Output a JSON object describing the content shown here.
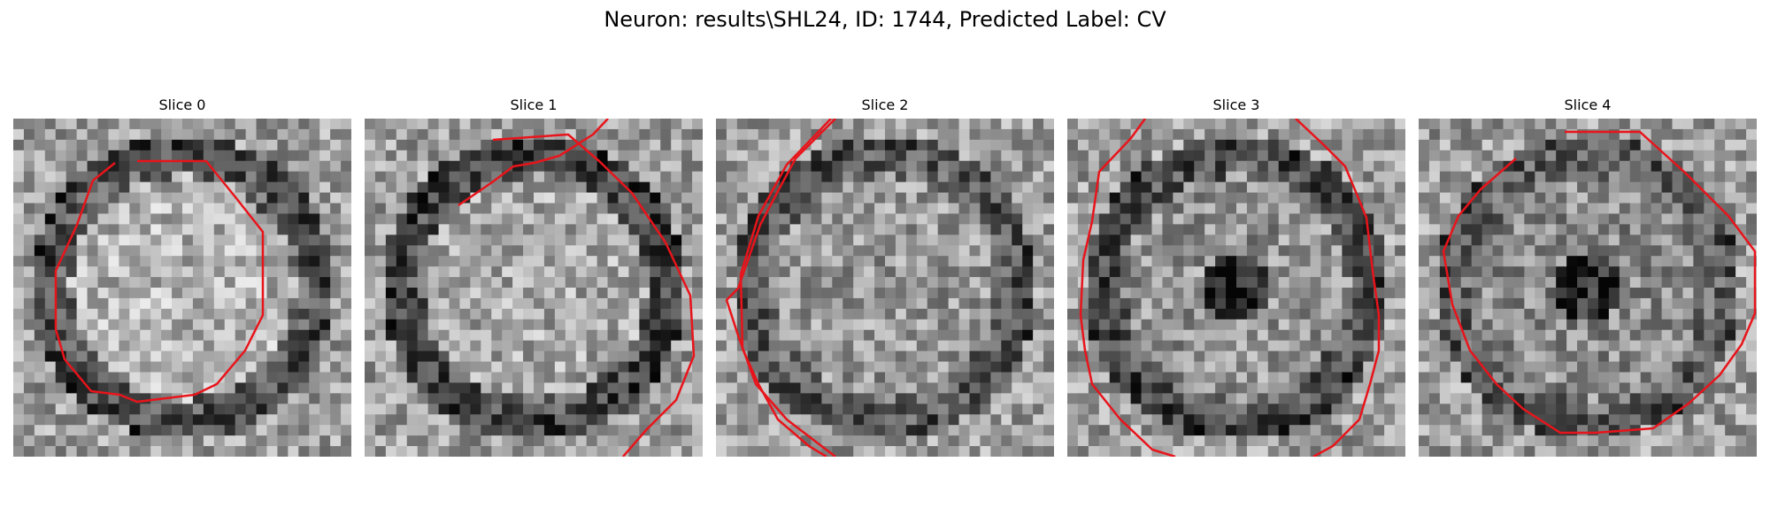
{
  "figure": {
    "suptitle": "Neuron: results\\SHL24, ID: 1744, Predicted Label: CV"
  },
  "panels": [
    {
      "title": "Slice 0",
      "seed": 11,
      "center_tone": 0.7,
      "rim_tone": 0.22
    },
    {
      "title": "Slice 1",
      "seed": 23,
      "center_tone": 0.66,
      "rim_tone": 0.18
    },
    {
      "title": "Slice 2",
      "seed": 37,
      "center_tone": 0.6,
      "rim_tone": 0.25
    },
    {
      "title": "Slice 3",
      "seed": 51,
      "center_tone": 0.58,
      "rim_tone": 0.2
    },
    {
      "title": "Slice 4",
      "seed": 67,
      "center_tone": 0.55,
      "rim_tone": 0.28
    }
  ],
  "colors": {
    "contour": "#e8141b",
    "background": "#ffffff"
  }
}
